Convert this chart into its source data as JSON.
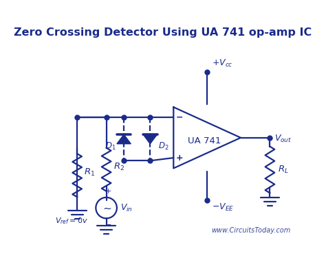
{
  "title": "Zero Crossing Detector Using UA 741 op-amp IC",
  "title_fontsize": 11.5,
  "color": "#1a2b8a",
  "bg_color": "#ffffff",
  "watermark": "www.CircuitsToday.com",
  "ua741": "UA 741",
  "lw": 1.6,
  "dot_size": 5
}
